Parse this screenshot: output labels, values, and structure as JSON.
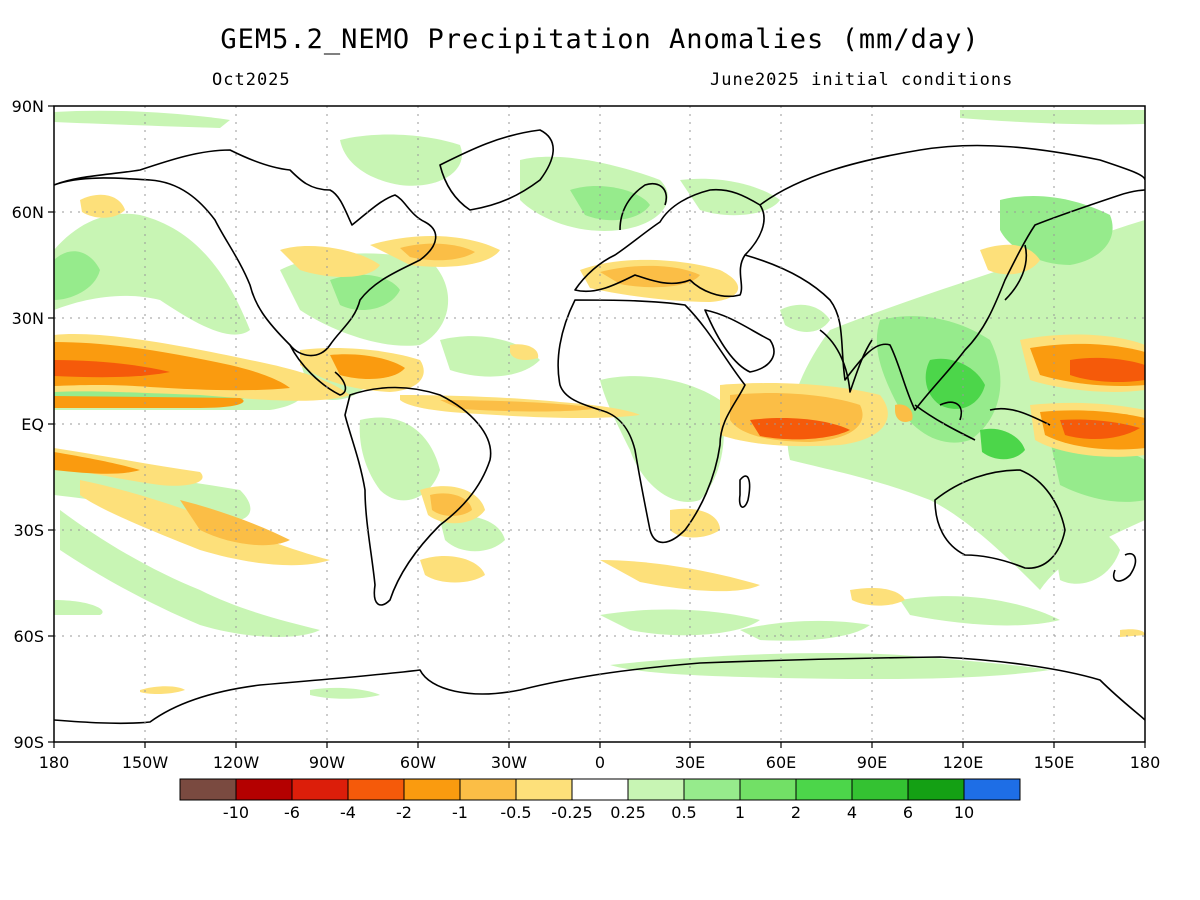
{
  "title": "GEM5.2_NEMO Precipitation Anomalies (mm/day)",
  "subtitle_left": "Oct2025",
  "subtitle_right": "June2025 initial conditions",
  "axes": {
    "y_ticks": [
      "90N",
      "60N",
      "30N",
      "EQ",
      "30S",
      "60S",
      "90S"
    ],
    "x_ticks": [
      "180",
      "150W",
      "120W",
      "90W",
      "60W",
      "30W",
      "0",
      "30E",
      "60E",
      "90E",
      "120E",
      "150E",
      "180"
    ]
  },
  "colorbar": {
    "colors": [
      "#7a4a40",
      "#b40000",
      "#dc1e0a",
      "#f55a0a",
      "#fa9b0f",
      "#fbbe46",
      "#fde07a",
      "#ffffff",
      "#c8f5b4",
      "#96eb8c",
      "#72e066",
      "#4cd64a",
      "#34c232",
      "#14a014",
      "#1e6ee6"
    ],
    "labels": [
      "-10",
      "-6",
      "-4",
      "-2",
      "-1",
      "-0.5",
      "-0.25",
      "0.25",
      "0.5",
      "1",
      "2",
      "4",
      "6",
      "10"
    ]
  },
  "patch_colors": {
    "wet_light": "#c8f5b4",
    "wet_mid": "#96eb8c",
    "wet_strong": "#4cd64a",
    "dry_light": "#fde07a",
    "dry_mid": "#fbbe46",
    "dry_strong": "#f55a0a",
    "land_outline": "#000000"
  }
}
